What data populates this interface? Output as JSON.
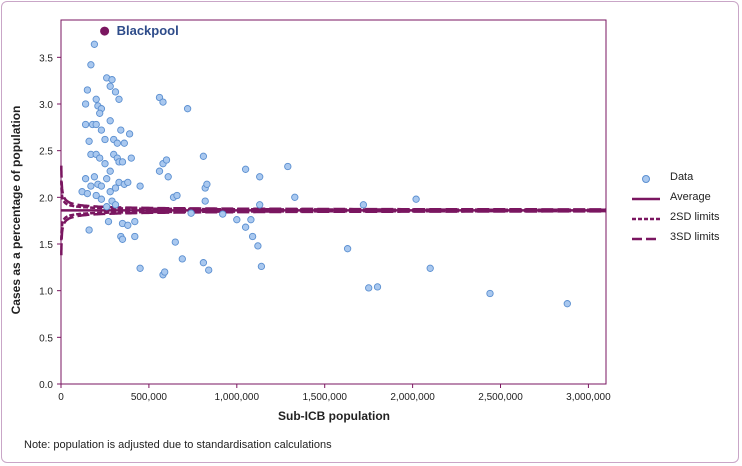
{
  "note": "Note: population is adjusted due to standardisation calculations",
  "legend": {
    "data": "Data",
    "average": "Average",
    "sd2": "2SD limits",
    "sd3": "3SD limits"
  },
  "highlight_label": "Blackpool",
  "colors": {
    "limits": "#7a1660",
    "points_fill": "#a9c8ef",
    "points_stroke": "#5b8fd0",
    "axis": "#7a1660",
    "highlight_text": "#2e4c8a"
  },
  "chart_data": {
    "type": "scatter",
    "xlabel": "Sub-ICB population",
    "ylabel": "Cases as a percentage of population",
    "xlim": [
      0,
      3100000
    ],
    "ylim": [
      0,
      3.9
    ],
    "xticks": [
      "0",
      "500,000",
      "1,000,000",
      "1,500,000",
      "2,000,000",
      "2,500,000",
      "3,000,000"
    ],
    "xtick_values": [
      0,
      500000,
      1000000,
      1500000,
      2000000,
      2500000,
      3000000
    ],
    "yticks": [
      "0.0",
      "0.5",
      "1.0",
      "1.5",
      "2.0",
      "2.5",
      "3.0",
      "3.5"
    ],
    "ytick_values": [
      0,
      0.5,
      1.0,
      1.5,
      2.0,
      2.5,
      3.0,
      3.5
    ],
    "average": 1.86,
    "limit_constant": 6.2,
    "highlight_point": {
      "label": "Blackpool",
      "x": 180000,
      "y": 3.77
    },
    "points": [
      [
        140000,
        3.0
      ],
      [
        150000,
        3.15
      ],
      [
        170000,
        3.42
      ],
      [
        190000,
        3.64
      ],
      [
        200000,
        3.05
      ],
      [
        210000,
        2.98
      ],
      [
        230000,
        2.95
      ],
      [
        260000,
        3.28
      ],
      [
        280000,
        3.19
      ],
      [
        290000,
        3.26
      ],
      [
        310000,
        3.13
      ],
      [
        330000,
        3.05
      ],
      [
        560000,
        3.07
      ],
      [
        580000,
        3.02
      ],
      [
        720000,
        2.95
      ],
      [
        140000,
        2.78
      ],
      [
        160000,
        2.6
      ],
      [
        180000,
        2.78
      ],
      [
        200000,
        2.78
      ],
      [
        220000,
        2.9
      ],
      [
        230000,
        2.72
      ],
      [
        250000,
        2.62
      ],
      [
        280000,
        2.82
      ],
      [
        300000,
        2.62
      ],
      [
        320000,
        2.58
      ],
      [
        340000,
        2.72
      ],
      [
        360000,
        2.58
      ],
      [
        390000,
        2.68
      ],
      [
        170000,
        2.46
      ],
      [
        200000,
        2.46
      ],
      [
        220000,
        2.42
      ],
      [
        250000,
        2.36
      ],
      [
        280000,
        2.28
      ],
      [
        300000,
        2.46
      ],
      [
        320000,
        2.42
      ],
      [
        330000,
        2.38
      ],
      [
        350000,
        2.38
      ],
      [
        400000,
        2.42
      ],
      [
        560000,
        2.28
      ],
      [
        580000,
        2.36
      ],
      [
        600000,
        2.4
      ],
      [
        610000,
        2.22
      ],
      [
        810000,
        2.44
      ],
      [
        140000,
        2.2
      ],
      [
        170000,
        2.12
      ],
      [
        190000,
        2.22
      ],
      [
        210000,
        2.14
      ],
      [
        230000,
        2.12
      ],
      [
        260000,
        2.2
      ],
      [
        280000,
        2.06
      ],
      [
        310000,
        2.1
      ],
      [
        330000,
        2.16
      ],
      [
        360000,
        2.14
      ],
      [
        380000,
        2.16
      ],
      [
        450000,
        2.12
      ],
      [
        640000,
        2.0
      ],
      [
        660000,
        2.02
      ],
      [
        820000,
        2.1
      ],
      [
        830000,
        2.14
      ],
      [
        1050000,
        2.3
      ],
      [
        1130000,
        2.22
      ],
      [
        1290000,
        2.33
      ],
      [
        1330000,
        2.0
      ],
      [
        1720000,
        1.92
      ],
      [
        2020000,
        1.98
      ],
      [
        120000,
        2.06
      ],
      [
        150000,
        2.04
      ],
      [
        200000,
        2.02
      ],
      [
        230000,
        1.98
      ],
      [
        260000,
        1.9
      ],
      [
        290000,
        1.96
      ],
      [
        310000,
        1.92
      ],
      [
        350000,
        1.72
      ],
      [
        380000,
        1.7
      ],
      [
        420000,
        1.74
      ],
      [
        740000,
        1.83
      ],
      [
        820000,
        1.96
      ],
      [
        920000,
        1.82
      ],
      [
        160000,
        1.65
      ],
      [
        270000,
        1.74
      ],
      [
        340000,
        1.58
      ],
      [
        350000,
        1.55
      ],
      [
        420000,
        1.58
      ],
      [
        650000,
        1.52
      ],
      [
        1000000,
        1.76
      ],
      [
        1050000,
        1.68
      ],
      [
        1090000,
        1.58
      ],
      [
        1120000,
        1.48
      ],
      [
        1080000,
        1.76
      ],
      [
        1130000,
        1.92
      ],
      [
        450000,
        1.24
      ],
      [
        580000,
        1.17
      ],
      [
        590000,
        1.2
      ],
      [
        690000,
        1.34
      ],
      [
        810000,
        1.3
      ],
      [
        840000,
        1.22
      ],
      [
        1140000,
        1.26
      ],
      [
        1630000,
        1.45
      ],
      [
        1750000,
        1.03
      ],
      [
        1800000,
        1.04
      ],
      [
        2100000,
        1.24
      ],
      [
        2440000,
        0.97
      ],
      [
        2880000,
        0.86
      ]
    ]
  }
}
